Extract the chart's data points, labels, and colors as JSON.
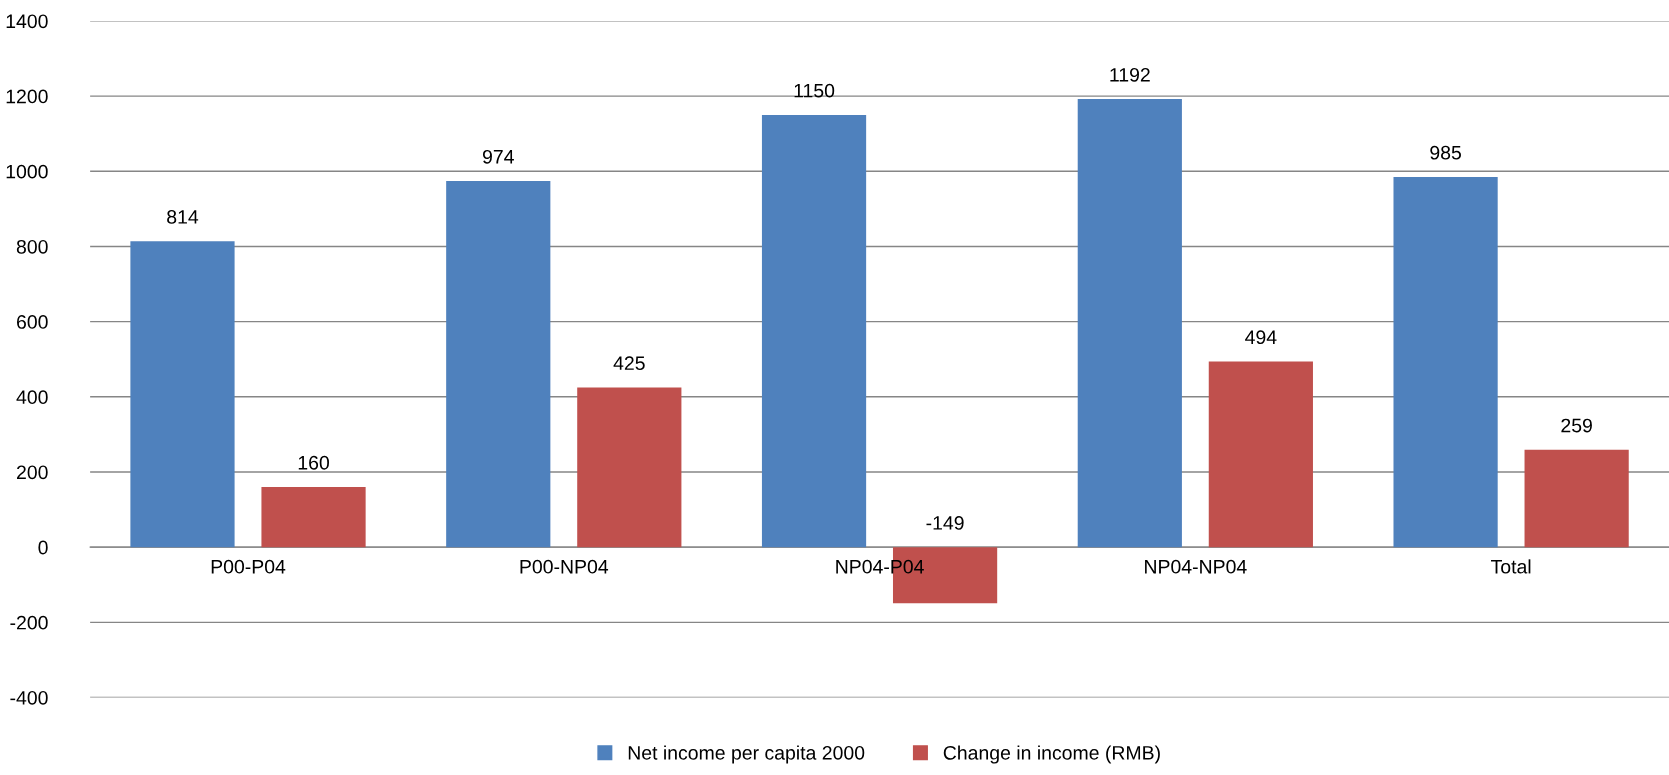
{
  "chart_data": {
    "type": "bar",
    "categories": [
      "P00-P04",
      "P00-NP04",
      "NP04-P04",
      "NP04-NP04",
      "Total"
    ],
    "series": [
      {
        "name": "Net income per capita 2000",
        "color": "#4f81bd",
        "values": [
          814,
          974,
          1150,
          1192,
          985
        ]
      },
      {
        "name": "Change in income (RMB)",
        "color": "#c0504d",
        "values": [
          160,
          425,
          -149,
          494,
          259
        ]
      }
    ],
    "ylim": [
      -400,
      1400
    ],
    "yticks": [
      -400,
      -200,
      0,
      200,
      400,
      600,
      800,
      1000,
      1200,
      1400
    ],
    "grid": "y",
    "legend": "bottom",
    "data_labels": true
  }
}
